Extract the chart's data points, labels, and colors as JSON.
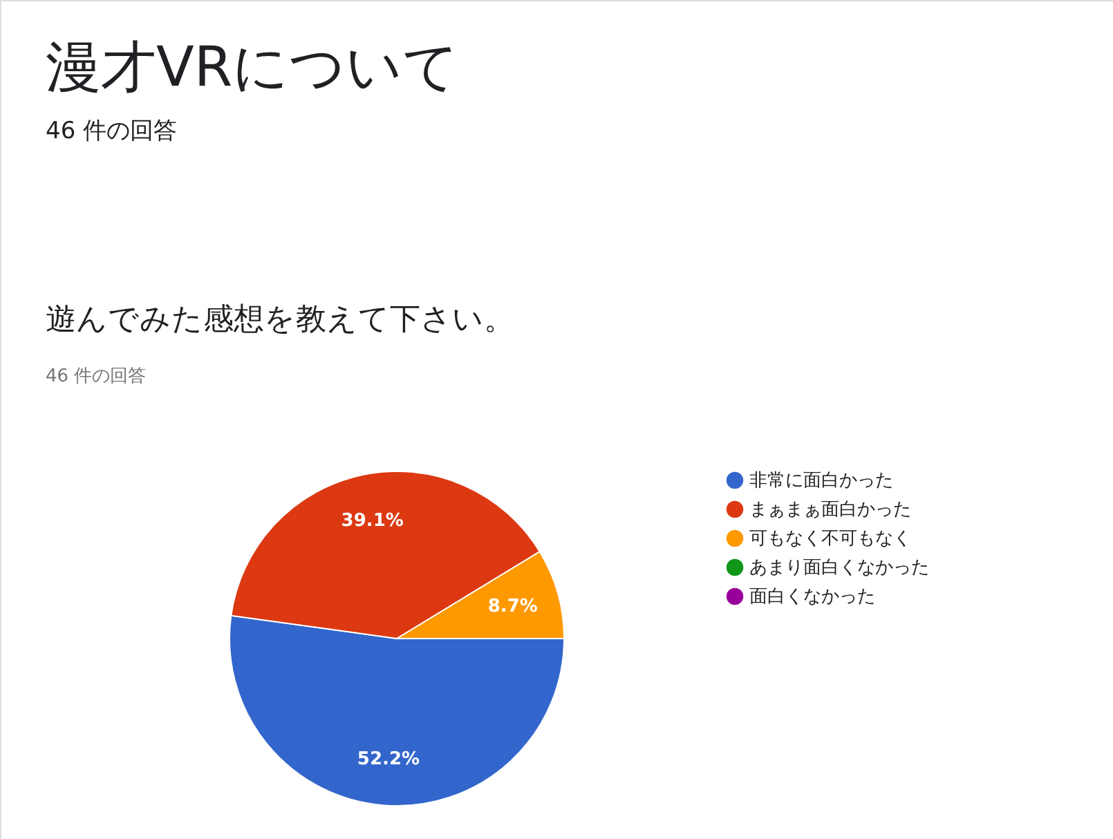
{
  "chart_data": {
    "type": "pie",
    "title": "漫才VRについて",
    "subtitle": "46 件の回答",
    "annotations": [
      "遊んでみた感想を教えて下さい。",
      "46 件の回答"
    ],
    "categories": [
      "非常に面白かった",
      "まぁまぁ面白かった",
      "可もなく不可もなく",
      "あまり面白くなかった",
      "面白くなかった"
    ],
    "values": [
      52.2,
      39.1,
      8.7,
      0,
      0
    ],
    "colors": [
      "#3366cc",
      "#dc3912",
      "#ff9900",
      "#109618",
      "#990099"
    ],
    "value_labels": [
      "52.2%",
      "39.1%",
      "8.7%",
      null,
      null
    ],
    "legend": "right"
  }
}
